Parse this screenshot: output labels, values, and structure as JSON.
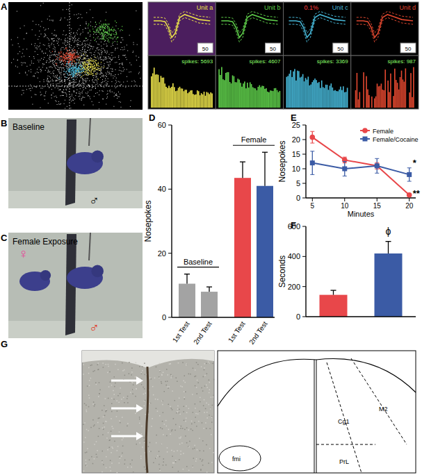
{
  "figure": {
    "panel_labels": [
      "A",
      "B",
      "C",
      "D",
      "E",
      "F",
      "G"
    ],
    "units": [
      {
        "name": "Unit a",
        "color": "#ebe24a",
        "spikes": "spikes: 5693",
        "scale": 50
      },
      {
        "name": "Unit b",
        "color": "#5fcf4b",
        "spikes": "spikes: 4607",
        "scale": 50
      },
      {
        "name": "Unit c",
        "color": "#46b6d6",
        "spikes": "spikes: 3369",
        "scale": 50,
        "note": "0.1%"
      },
      {
        "name": "Unit d",
        "color": "#e0472f",
        "spikes": "spikes: 987",
        "scale": 50
      }
    ],
    "photos": [
      {
        "label": "Baseline",
        "symbols": [
          {
            "text": "♂",
            "color": "#111111"
          }
        ]
      },
      {
        "label": "Female Exposure",
        "symbols": [
          {
            "text": "♀",
            "color": "#e5499a"
          },
          {
            "text": "♂",
            "color": "#e03a2a"
          }
        ]
      }
    ],
    "atlas_labels": [
      "M2",
      "Cg1",
      "PrL",
      "fmi"
    ]
  },
  "chart_data": [
    {
      "type": "bar",
      "ylabel": "Nosepokes",
      "categories": [
        "1st Test",
        "2nd Test",
        "1st Test",
        "2nd Test"
      ],
      "values": [
        10.5,
        8,
        43.5,
        41
      ],
      "errors": [
        3,
        1.5,
        5,
        10.5
      ],
      "colors": [
        "#a3a3a3",
        "#a3a3a3",
        "#e8474a",
        "#3b5ba5"
      ],
      "groups": [
        {
          "label": "Baseline",
          "size": 2
        },
        {
          "label": "Female",
          "size": 2
        }
      ],
      "ylim": [
        0,
        60
      ],
      "yticks": [
        0,
        20,
        40,
        60
      ]
    },
    {
      "type": "line",
      "ylabel": "Nosepokes",
      "xlabel": "Minutes",
      "x": [
        5,
        10,
        15,
        20
      ],
      "series": [
        {
          "name": "Female",
          "color": "#e8474a",
          "marker": "circle",
          "values": [
            20.8,
            13,
            11,
            1
          ],
          "errors": [
            2,
            1,
            1.1,
            0.4
          ]
        },
        {
          "name": "Female/Cocaine",
          "color": "#3b5ba5",
          "marker": "square",
          "values": [
            12,
            10,
            11,
            8
          ],
          "errors": [
            4,
            2.5,
            2.5,
            2.3
          ]
        }
      ],
      "annotations": [
        {
          "text": "*",
          "x": 20,
          "y": 12
        },
        {
          "text": "**",
          "x": 20,
          "y": 1.5
        }
      ],
      "legend": "upper right",
      "xlim": [
        4,
        21
      ],
      "xticks": [
        5,
        10,
        15,
        20
      ],
      "ylim": [
        0,
        25
      ],
      "yticks": [
        0,
        5,
        10,
        15,
        20,
        25
      ]
    },
    {
      "type": "bar",
      "ylabel": "Seconds",
      "categories": [
        null,
        null
      ],
      "values": [
        145,
        420
      ],
      "errors": [
        30,
        80
      ],
      "colors": [
        "#e8474a",
        "#3b5ba5"
      ],
      "annotations": [
        {
          "text": "ϕ",
          "index": 1,
          "y": 545
        }
      ],
      "ylim": [
        0,
        600
      ],
      "yticks": [
        0,
        200,
        400,
        600
      ]
    }
  ]
}
